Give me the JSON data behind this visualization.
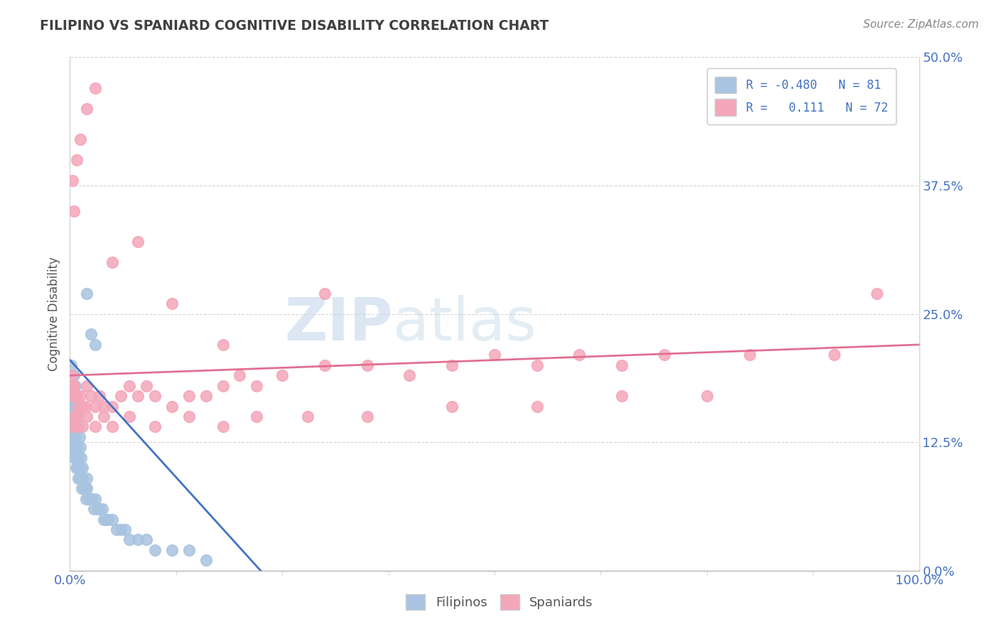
{
  "title": "FILIPINO VS SPANIARD COGNITIVE DISABILITY CORRELATION CHART",
  "source": "Source: ZipAtlas.com",
  "ylabel": "Cognitive Disability",
  "xlim": [
    0,
    1.0
  ],
  "ylim": [
    0,
    0.5
  ],
  "yticks": [
    0.0,
    0.125,
    0.25,
    0.375,
    0.5
  ],
  "ytick_labels": [
    "0.0%",
    "12.5%",
    "25.0%",
    "37.5%",
    "50.0%"
  ],
  "xtick_labels": [
    "0.0%",
    "100.0%"
  ],
  "filipino_color": "#a8c4e0",
  "spaniard_color": "#f4a7b9",
  "filipino_line_color": "#4472c4",
  "spaniard_line_color": "#e07090",
  "R_filipino": -0.48,
  "N_filipino": 81,
  "R_spaniard": 0.111,
  "N_spaniard": 72,
  "background_color": "#ffffff",
  "grid_color": "#cccccc",
  "title_color": "#404040",
  "axis_label_color": "#4472c4",
  "legend_text_color": "#4472c4",
  "watermark_color": "#dce8f5",
  "filipino_x": [
    0.001,
    0.001,
    0.001,
    0.001,
    0.001,
    0.002,
    0.002,
    0.002,
    0.002,
    0.003,
    0.003,
    0.003,
    0.003,
    0.004,
    0.004,
    0.004,
    0.005,
    0.005,
    0.005,
    0.006,
    0.006,
    0.006,
    0.007,
    0.007,
    0.007,
    0.008,
    0.008,
    0.009,
    0.009,
    0.01,
    0.01,
    0.01,
    0.011,
    0.011,
    0.012,
    0.012,
    0.013,
    0.014,
    0.014,
    0.015,
    0.016,
    0.017,
    0.018,
    0.019,
    0.02,
    0.022,
    0.024,
    0.026,
    0.028,
    0.03,
    0.032,
    0.035,
    0.038,
    0.04,
    0.042,
    0.045,
    0.05,
    0.055,
    0.06,
    0.065,
    0.07,
    0.08,
    0.09,
    0.1,
    0.12,
    0.14,
    0.16,
    0.02,
    0.025,
    0.03,
    0.005,
    0.006,
    0.007,
    0.008,
    0.009,
    0.01,
    0.011,
    0.012,
    0.013,
    0.015,
    0.02
  ],
  "filipino_y": [
    0.2,
    0.18,
    0.17,
    0.16,
    0.15,
    0.17,
    0.16,
    0.15,
    0.14,
    0.15,
    0.14,
    0.13,
    0.12,
    0.14,
    0.13,
    0.12,
    0.13,
    0.12,
    0.11,
    0.13,
    0.12,
    0.11,
    0.12,
    0.11,
    0.1,
    0.12,
    0.11,
    0.11,
    0.1,
    0.11,
    0.1,
    0.09,
    0.1,
    0.09,
    0.1,
    0.09,
    0.09,
    0.09,
    0.08,
    0.09,
    0.08,
    0.08,
    0.08,
    0.07,
    0.08,
    0.07,
    0.07,
    0.07,
    0.06,
    0.07,
    0.06,
    0.06,
    0.06,
    0.05,
    0.05,
    0.05,
    0.05,
    0.04,
    0.04,
    0.04,
    0.03,
    0.03,
    0.03,
    0.02,
    0.02,
    0.02,
    0.01,
    0.27,
    0.23,
    0.22,
    0.19,
    0.18,
    0.17,
    0.16,
    0.15,
    0.14,
    0.13,
    0.12,
    0.11,
    0.1,
    0.09
  ],
  "spaniard_x": [
    0.001,
    0.002,
    0.003,
    0.004,
    0.005,
    0.006,
    0.008,
    0.01,
    0.012,
    0.015,
    0.018,
    0.02,
    0.025,
    0.03,
    0.035,
    0.04,
    0.05,
    0.06,
    0.07,
    0.08,
    0.09,
    0.1,
    0.12,
    0.14,
    0.16,
    0.18,
    0.2,
    0.22,
    0.25,
    0.3,
    0.35,
    0.4,
    0.45,
    0.5,
    0.55,
    0.6,
    0.65,
    0.7,
    0.8,
    0.9,
    0.003,
    0.005,
    0.007,
    0.01,
    0.015,
    0.02,
    0.03,
    0.04,
    0.05,
    0.07,
    0.1,
    0.14,
    0.18,
    0.22,
    0.28,
    0.35,
    0.45,
    0.55,
    0.65,
    0.75,
    0.003,
    0.005,
    0.008,
    0.012,
    0.02,
    0.03,
    0.05,
    0.08,
    0.12,
    0.18,
    0.3,
    0.95
  ],
  "spaniard_y": [
    0.18,
    0.19,
    0.18,
    0.17,
    0.18,
    0.17,
    0.17,
    0.16,
    0.17,
    0.16,
    0.16,
    0.18,
    0.17,
    0.16,
    0.17,
    0.16,
    0.16,
    0.17,
    0.18,
    0.17,
    0.18,
    0.17,
    0.16,
    0.17,
    0.17,
    0.18,
    0.19,
    0.18,
    0.19,
    0.2,
    0.2,
    0.19,
    0.2,
    0.21,
    0.2,
    0.21,
    0.2,
    0.21,
    0.21,
    0.21,
    0.14,
    0.15,
    0.14,
    0.15,
    0.14,
    0.15,
    0.14,
    0.15,
    0.14,
    0.15,
    0.14,
    0.15,
    0.14,
    0.15,
    0.15,
    0.15,
    0.16,
    0.16,
    0.17,
    0.17,
    0.38,
    0.35,
    0.4,
    0.42,
    0.45,
    0.47,
    0.3,
    0.32,
    0.26,
    0.22,
    0.27,
    0.27
  ]
}
